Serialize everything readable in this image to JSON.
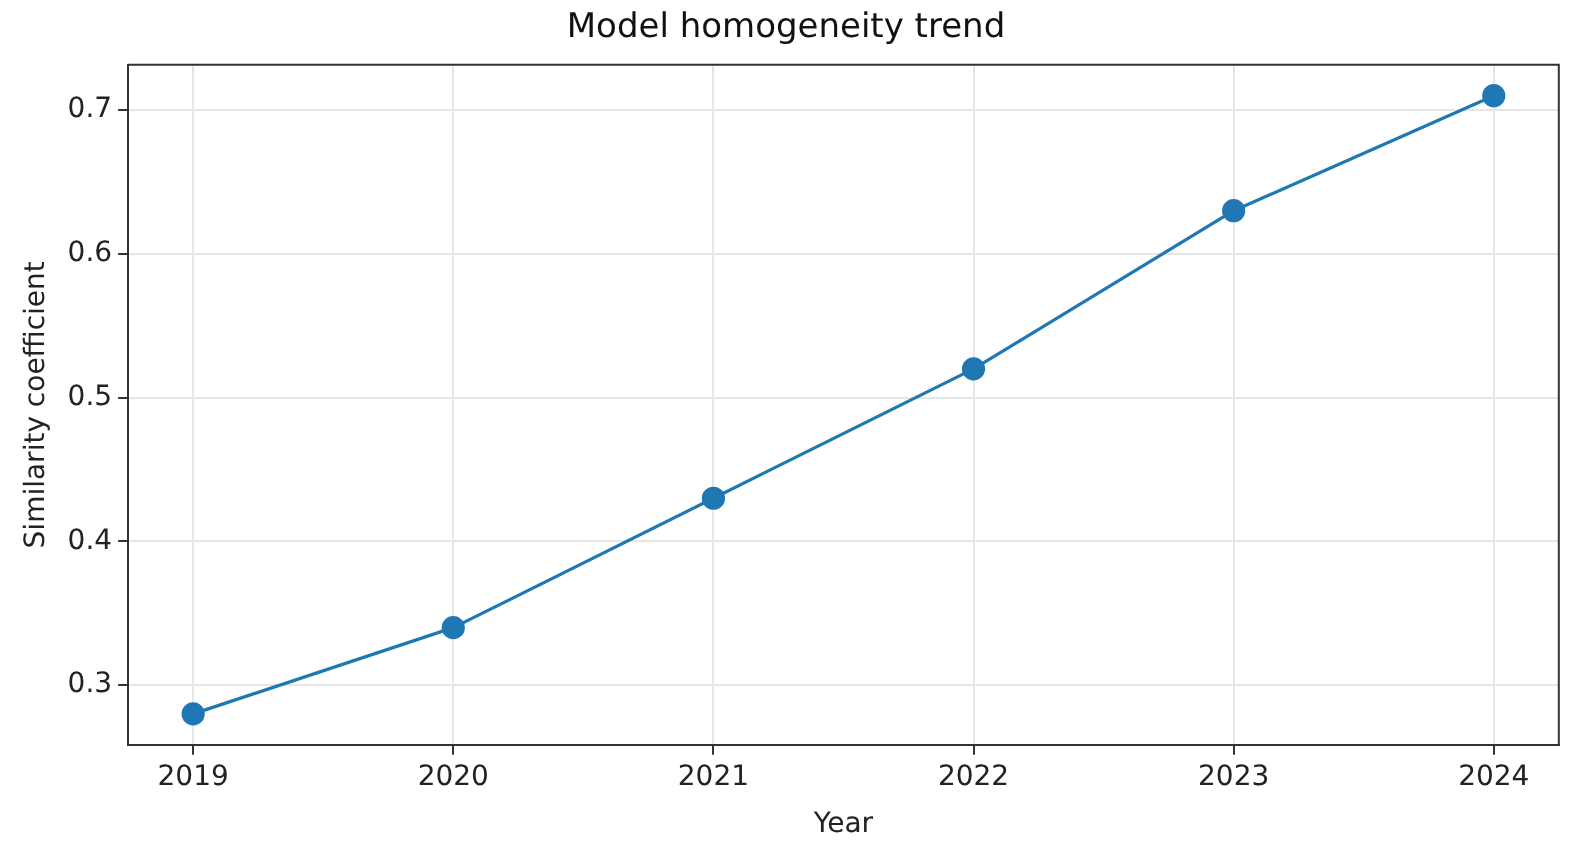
{
  "chart_data": {
    "type": "line",
    "title": "Model homogeneity trend",
    "xlabel": "Year",
    "ylabel": "Similarity coefficient",
    "x": [
      2019,
      2020,
      2021,
      2022,
      2023,
      2024
    ],
    "series": [
      {
        "color": "#1f77b4",
        "values": [
          0.28,
          0.34,
          0.43,
          0.52,
          0.63,
          0.71
        ]
      }
    ],
    "xlim": [
      2018.75,
      2024.25
    ],
    "xticks": [
      2019,
      2020,
      2021,
      2022,
      2023,
      2024
    ],
    "ylim": [
      0.2585,
      0.7315
    ],
    "yticks": [
      0.3,
      0.4,
      0.5,
      0.6,
      0.7
    ],
    "grid": true,
    "marker": "circle",
    "line_style": "solid"
  }
}
